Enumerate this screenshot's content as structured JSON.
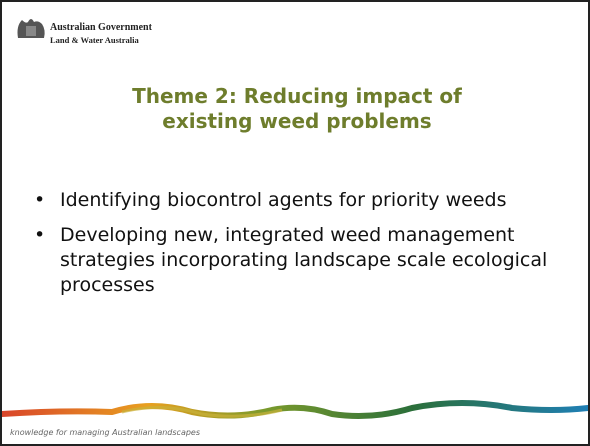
{
  "header": {
    "organisation": "Australian Government",
    "agency": "Land & Water Australia"
  },
  "title": "Theme 2: Reducing impact of existing weed problems",
  "bullets": [
    "Identifying biocontrol agents for priority weeds",
    "Developing new, integrated weed management strategies incorporating landscape scale ecological processes"
  ],
  "footer": "knowledge for managing Australian landscapes"
}
